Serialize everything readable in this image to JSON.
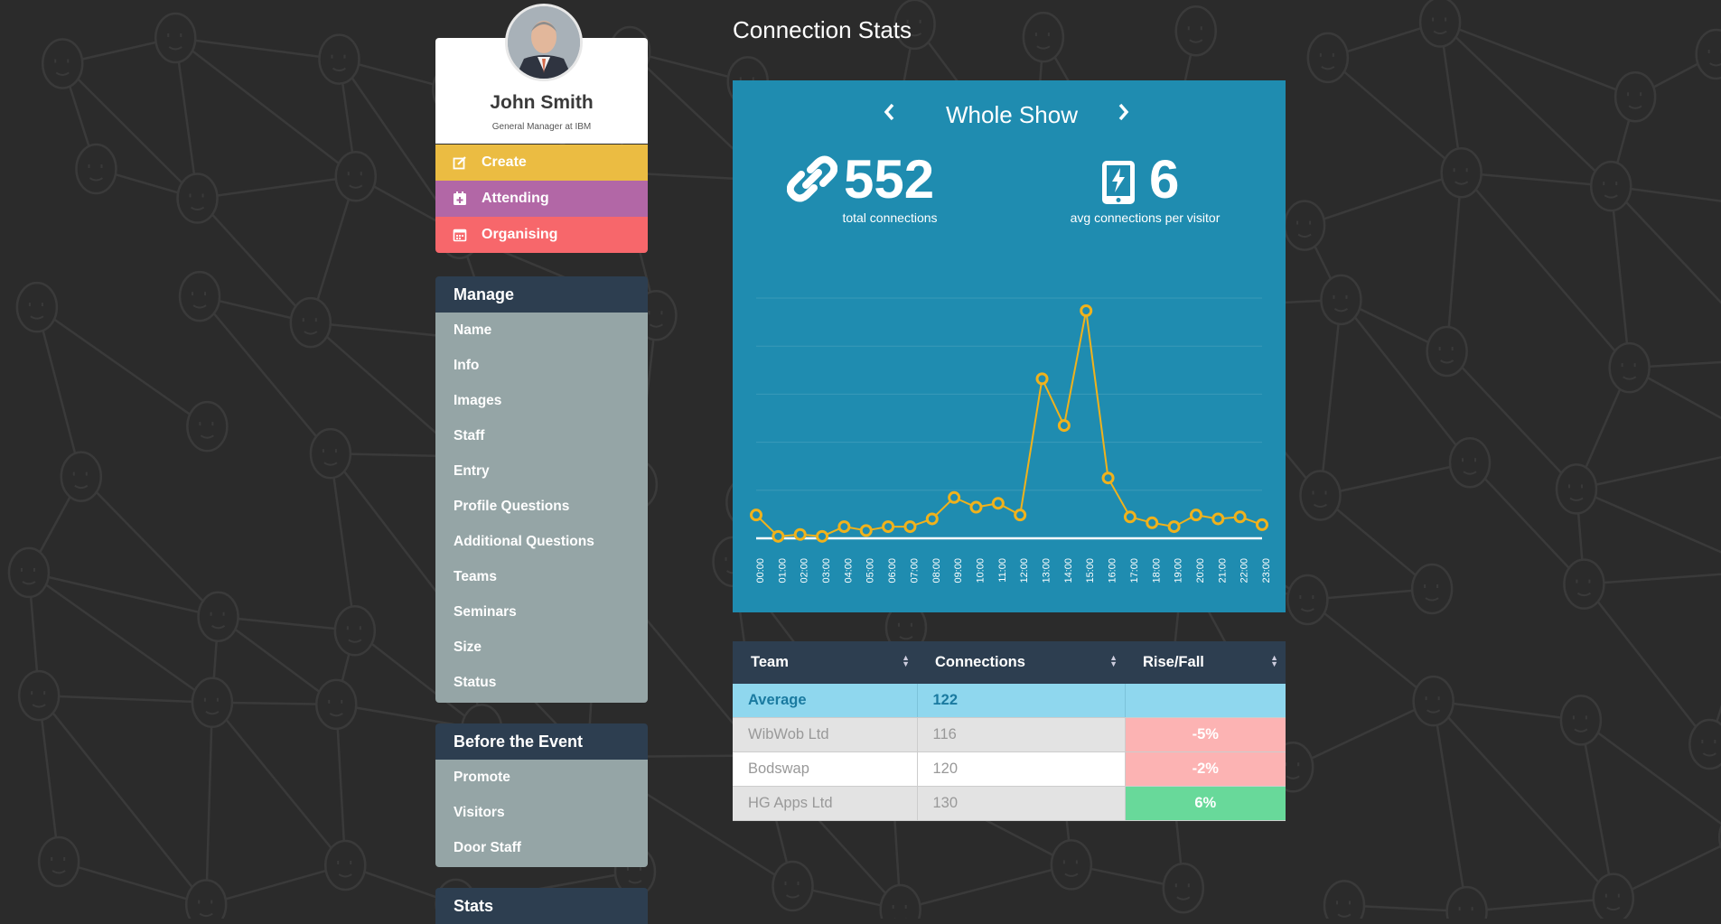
{
  "profile": {
    "name": "John Smith",
    "role": "General Manager at IBM"
  },
  "actions": {
    "create": "Create",
    "attending": "Attending",
    "organising": "Organising"
  },
  "manage": {
    "title": "Manage",
    "items": [
      "Name",
      "Info",
      "Images",
      "Staff",
      "Entry",
      "Profile Questions",
      "Additional Questions",
      "Teams",
      "Seminars",
      "Size",
      "Status"
    ]
  },
  "before_event": {
    "title": "Before the Event",
    "items": [
      "Promote",
      "Visitors",
      "Door Staff"
    ]
  },
  "stats_menu": {
    "title": "Stats"
  },
  "page_title": "Connection Stats",
  "panel": {
    "nav_title": "Whole Show",
    "prev_icon": "chevron-left-icon",
    "next_icon": "chevron-right-icon",
    "total_connections": "552",
    "total_label": "total connections",
    "avg_connections": "6",
    "avg_label": "avg connections per visitor"
  },
  "colors": {
    "panel_bg": "#1f8cb0",
    "line": "#f0b21c",
    "create": "#ebbc42",
    "attending": "#b267a6",
    "organising": "#f7676b",
    "menu_head": "#2d3e50",
    "menu_body": "#95a5a6"
  },
  "chart_data": {
    "type": "line",
    "x": [
      "00:00",
      "01:00",
      "02:00",
      "03:00",
      "04:00",
      "05:00",
      "06:00",
      "07:00",
      "08:00",
      "09:00",
      "10:00",
      "11:00",
      "12:00",
      "13:00",
      "14:00",
      "15:00",
      "16:00",
      "17:00",
      "18:00",
      "19:00",
      "20:00",
      "21:00",
      "22:00",
      "23:00"
    ],
    "series": [
      {
        "values": [
          12,
          1,
          2,
          1,
          6,
          4,
          6,
          6,
          10,
          21,
          16,
          18,
          12,
          82,
          58,
          117,
          31,
          11,
          8,
          6,
          12,
          10,
          11,
          7
        ]
      }
    ],
    "ylim": [
      0,
      130
    ],
    "grid": true,
    "legend": "none"
  },
  "table": {
    "headers": [
      "Team",
      "Connections",
      "Rise/Fall"
    ],
    "average": {
      "team": "Average",
      "connections": "122",
      "change": ""
    },
    "rows": [
      {
        "team": "WibWob Ltd",
        "connections": "116",
        "change": "-5%",
        "trend": "neg"
      },
      {
        "team": "Bodswap",
        "connections": "120",
        "change": "-2%",
        "trend": "neg"
      },
      {
        "team": "HG Apps Ltd",
        "connections": "130",
        "change": "6%",
        "trend": "pos"
      }
    ]
  }
}
